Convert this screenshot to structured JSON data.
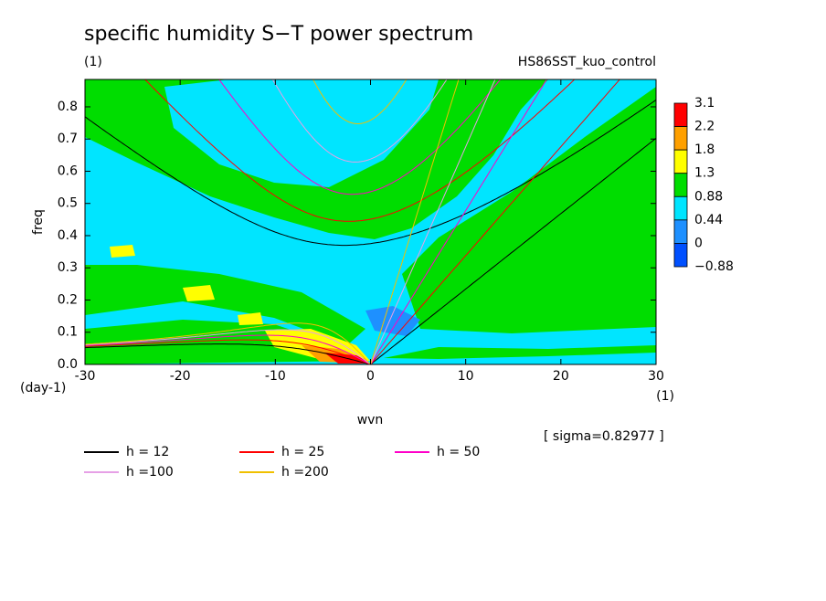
{
  "chart_data": {
    "type": "contour",
    "title": "specific humidity S−T power spectrum",
    "subtitle": "(1)",
    "annotation": "HS86SST_kuo_control",
    "xlabel": "wvn",
    "ylabel": "freq",
    "x_unit": "(1)",
    "y_unit": "(day-1)",
    "note": "[ sigma=0.82977 ]",
    "xlim": [
      -30,
      30
    ],
    "xticks": [
      -30,
      -20,
      -10,
      0,
      10,
      20,
      30
    ],
    "ylim": [
      0,
      0.885
    ],
    "yticks": [
      {
        "value": 0,
        "label": "0.0"
      },
      0.1,
      0.2,
      0.3,
      0.4,
      0.5,
      0.6,
      0.7,
      0.8
    ],
    "colorbar": {
      "levels": [
        3.1,
        2.2,
        1.8,
        1.3,
        0.88,
        0.44,
        0,
        {
          "value": -0.88,
          "label": "−0.88"
        }
      ],
      "colors": [
        "#ff0000",
        "#ffa000",
        "#ffff00",
        "#00dd00",
        "#00e5ff",
        "#1e90ff",
        "#0050ff"
      ]
    },
    "series": [
      {
        "name": "h = 12",
        "h": 12,
        "color": "#000000"
      },
      {
        "name": "h = 25",
        "h": 25,
        "color": "#ff0000"
      },
      {
        "name": "h = 50",
        "h": 50,
        "color": "#ff00c8"
      },
      {
        "name": "h =100",
        "h": 100,
        "color": "#e6a0e6"
      },
      {
        "name": "h =200",
        "h": 200,
        "color": "#f0c000"
      }
    ]
  }
}
